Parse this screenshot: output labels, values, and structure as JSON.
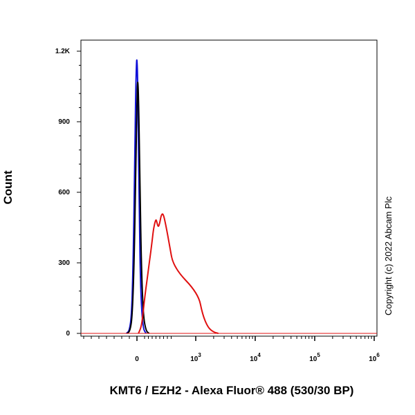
{
  "chart_data": {
    "type": "line",
    "xlabel": "KMT6 / EZH2 - Alexa Fluor® 488 (530/30 BP)",
    "ylabel": "Count",
    "ylim": [
      0,
      1200
    ],
    "y_ticks": [
      {
        "value": 0,
        "label": "0"
      },
      {
        "value": 300,
        "label": "300"
      },
      {
        "value": 600,
        "label": "600"
      },
      {
        "value": 900,
        "label": "900"
      },
      {
        "value": 1200,
        "label": "1.2K"
      }
    ],
    "x_scale": "biexponential",
    "x_ticks": [
      {
        "value": 0,
        "base": "0",
        "exp": ""
      },
      {
        "value": 1000,
        "base": "10",
        "exp": "3"
      },
      {
        "value": 10000,
        "base": "10",
        "exp": "4"
      },
      {
        "value": 100000,
        "base": "10",
        "exp": "5"
      },
      {
        "value": 1000000,
        "base": "10",
        "exp": "6"
      }
    ],
    "series": [
      {
        "color": "#1010d8",
        "x": [
          -280,
          -200,
          -140,
          -100,
          -60,
          -30,
          -10,
          0,
          15,
          35,
          60,
          100,
          160,
          240
        ],
        "y": [
          0,
          10,
          80,
          300,
          700,
          1050,
          1160,
          1165,
          1110,
          900,
          500,
          160,
          20,
          0
        ]
      },
      {
        "color": "#000000",
        "x": [
          -260,
          -180,
          -120,
          -70,
          -30,
          0,
          15,
          30,
          50,
          80,
          120,
          170,
          240,
          320
        ],
        "y": [
          0,
          10,
          80,
          330,
          720,
          980,
          1070,
          1065,
          930,
          620,
          260,
          70,
          10,
          0
        ]
      },
      {
        "color": "#e01010",
        "x": [
          40,
          120,
          170,
          210,
          260,
          300,
          340,
          390,
          430,
          470,
          500,
          520,
          560,
          600,
          640,
          690,
          760,
          850,
          960,
          1100,
          1300,
          1600,
          2000,
          2400
        ],
        "y": [
          0,
          30,
          100,
          160,
          220,
          270,
          320,
          380,
          440,
          470,
          485,
          475,
          450,
          470,
          505,
          510,
          460,
          380,
          280,
          170,
          80,
          25,
          5,
          0
        ]
      }
    ]
  },
  "copyright": "Copyright (c) 2022 Abcam Plc"
}
